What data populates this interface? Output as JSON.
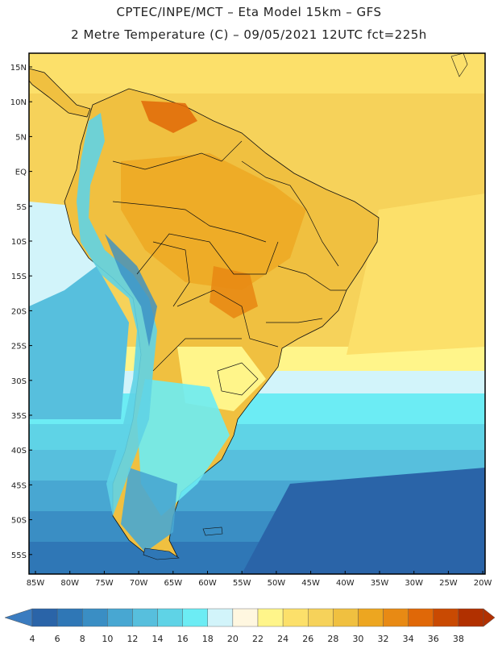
{
  "header": {
    "line1": "CPTEC/INPE/MCT –  Eta Model 15km – GFS",
    "line2": "2 Metre Temperature (C) – 09/05/2021 12UTC fct=225h"
  },
  "map": {
    "lat_labels": [
      "15N",
      "10N",
      "5N",
      "EQ",
      "5S",
      "10S",
      "15S",
      "20S",
      "25S",
      "30S",
      "35S",
      "40S",
      "45S",
      "50S",
      "55S"
    ],
    "lon_labels": [
      "85W",
      "80W",
      "75W",
      "70W",
      "65W",
      "60W",
      "55W",
      "50W",
      "45W",
      "40W",
      "35W",
      "30W",
      "25W",
      "20W"
    ]
  },
  "colorbar": {
    "labels": [
      "4",
      "6",
      "8",
      "10",
      "12",
      "14",
      "16",
      "18",
      "20",
      "22",
      "24",
      "26",
      "28",
      "30",
      "32",
      "34",
      "36",
      "38"
    ],
    "colors": [
      "#2a64a8",
      "#2f77b6",
      "#3a8ec4",
      "#48a7d2",
      "#57bfdd",
      "#5fd3e6",
      "#6cecf4",
      "#d2f4fa",
      "#fff7e0",
      "#fff58a",
      "#fce06a",
      "#f6d25a",
      "#f0c040",
      "#eda620",
      "#e88a14",
      "#e06808",
      "#c94a02",
      "#b13000"
    ],
    "low_color": "#3b7cc0",
    "high_color": "#b13000"
  }
}
